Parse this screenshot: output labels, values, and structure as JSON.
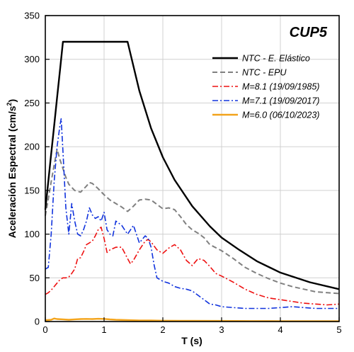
{
  "chart_data": {
    "type": "line",
    "title": "CUP5",
    "xlabel": "T (s)",
    "ylabel": "Aceleración Espectral (cm/s²)",
    "ylabel_main": "Aceleración Espectral (cm/s",
    "ylabel_sup": "2",
    "ylabel_end": ")",
    "xlim": [
      0,
      5
    ],
    "ylim": [
      0,
      350
    ],
    "xticks": [
      0,
      1,
      2,
      3,
      4,
      5
    ],
    "yticks": [
      0,
      50,
      100,
      150,
      200,
      250,
      300,
      350
    ],
    "grid": true,
    "legend_position": "top-right",
    "series": [
      {
        "name": "NTC - E. Elástico",
        "color": "#000000",
        "style": "solid",
        "x": [
          0,
          0.05,
          0.1,
          0.15,
          0.2,
          0.25,
          0.3,
          0.35,
          0.5,
          0.8,
          1.0,
          1.2,
          1.4,
          1.6,
          1.8,
          2.0,
          2.2,
          2.5,
          2.8,
          3.0,
          3.3,
          3.6,
          4.0,
          4.5,
          5.0
        ],
        "y": [
          128,
          160,
          192,
          224,
          256,
          288,
          320,
          320,
          320,
          320,
          320,
          320,
          320,
          264,
          221,
          188,
          162,
          132,
          109,
          96,
          82,
          69,
          56,
          45,
          37
        ]
      },
      {
        "name": "NTC - EPU",
        "color": "#808080",
        "style": "dashed",
        "x": [
          0,
          0.05,
          0.1,
          0.15,
          0.2,
          0.25,
          0.3,
          0.35,
          0.4,
          0.5,
          0.6,
          0.7,
          0.75,
          0.8,
          0.9,
          1.0,
          1.1,
          1.2,
          1.3,
          1.4,
          1.5,
          1.6,
          1.7,
          1.8,
          1.9,
          2.0,
          2.1,
          2.2,
          2.3,
          2.4,
          2.5,
          2.6,
          2.7,
          2.8,
          3.0,
          3.2,
          3.4,
          3.6,
          3.8,
          4.0,
          4.2,
          4.4,
          4.6,
          4.8,
          5.0
        ],
        "y": [
          121,
          140,
          160,
          179,
          197,
          185,
          175,
          165,
          157,
          150,
          148,
          155,
          159,
          158,
          152,
          145,
          139,
          135,
          131,
          126,
          132,
          139,
          140,
          139,
          134,
          129,
          130,
          128,
          120,
          111,
          105,
          101,
          96,
          88,
          81,
          72,
          62,
          55,
          49,
          44,
          40,
          37,
          34,
          33,
          32
        ]
      },
      {
        "name": "M=8.1 (19/09/1985)",
        "color": "#ee1111",
        "style": "dashdot",
        "x": [
          0,
          0.05,
          0.1,
          0.15,
          0.2,
          0.25,
          0.3,
          0.35,
          0.4,
          0.45,
          0.5,
          0.55,
          0.6,
          0.65,
          0.7,
          0.75,
          0.8,
          0.85,
          0.9,
          0.95,
          1.0,
          1.05,
          1.1,
          1.2,
          1.3,
          1.4,
          1.45,
          1.5,
          1.6,
          1.7,
          1.75,
          1.8,
          1.9,
          2.0,
          2.1,
          2.2,
          2.3,
          2.4,
          2.5,
          2.6,
          2.7,
          2.8,
          2.9,
          3.0,
          3.2,
          3.4,
          3.6,
          3.8,
          4.0,
          4.2,
          4.4,
          4.6,
          4.8,
          5.0
        ],
        "y": [
          31,
          33,
          36,
          40,
          44,
          48,
          50,
          50,
          51,
          55,
          60,
          72,
          73,
          80,
          88,
          90,
          92,
          98,
          105,
          108,
          95,
          79,
          82,
          85,
          85,
          72,
          66,
          70,
          82,
          92,
          94,
          91,
          82,
          78,
          84,
          88,
          82,
          70,
          64,
          72,
          70,
          63,
          55,
          52,
          45,
          37,
          31,
          27,
          25,
          23,
          21,
          20,
          19,
          20
        ]
      },
      {
        "name": "M=7.1 (19/09/2017)",
        "color": "#1133dd",
        "style": "dashdot",
        "x": [
          0,
          0.05,
          0.1,
          0.15,
          0.2,
          0.25,
          0.27,
          0.3,
          0.35,
          0.4,
          0.45,
          0.5,
          0.55,
          0.6,
          0.65,
          0.7,
          0.75,
          0.8,
          0.85,
          0.9,
          0.95,
          1.0,
          1.05,
          1.1,
          1.15,
          1.2,
          1.3,
          1.4,
          1.5,
          1.6,
          1.7,
          1.75,
          1.8,
          1.85,
          1.9,
          2.0,
          2.1,
          2.2,
          2.3,
          2.4,
          2.5,
          2.6,
          2.7,
          2.8,
          2.9,
          3.0,
          3.2,
          3.4,
          3.6,
          3.8,
          4.0,
          4.2,
          4.4,
          4.6,
          4.8,
          5.0
        ],
        "y": [
          60,
          62,
          100,
          160,
          200,
          225,
          232,
          195,
          130,
          100,
          135,
          115,
          100,
          98,
          105,
          115,
          130,
          122,
          118,
          120,
          115,
          125,
          105,
          100,
          98,
          115,
          110,
          100,
          110,
          90,
          98,
          95,
          85,
          65,
          50,
          46,
          44,
          40,
          38,
          37,
          35,
          30,
          25,
          20,
          19,
          17,
          16,
          15,
          15,
          15,
          16,
          17,
          16,
          15,
          15,
          15
        ]
      },
      {
        "name": "M=6.0 (06/10/2023)",
        "color": "#f2a31b",
        "style": "solid",
        "x": [
          0,
          0.1,
          0.15,
          0.2,
          0.3,
          0.4,
          0.5,
          0.6,
          0.7,
          0.8,
          0.9,
          1.0,
          1.1,
          1.2,
          1.4,
          1.6,
          1.8,
          2.0,
          2.5,
          3.0,
          3.5,
          4.0,
          4.5,
          5.0
        ],
        "y": [
          1.5,
          2.0,
          3.5,
          2.8,
          2.5,
          2.0,
          2.5,
          2.8,
          3.0,
          2.8,
          3.2,
          3.0,
          2.4,
          2.0,
          1.6,
          1.3,
          1.2,
          1.0,
          0.8,
          0.7,
          0.6,
          0.5,
          0.5,
          0.4
        ]
      }
    ]
  }
}
